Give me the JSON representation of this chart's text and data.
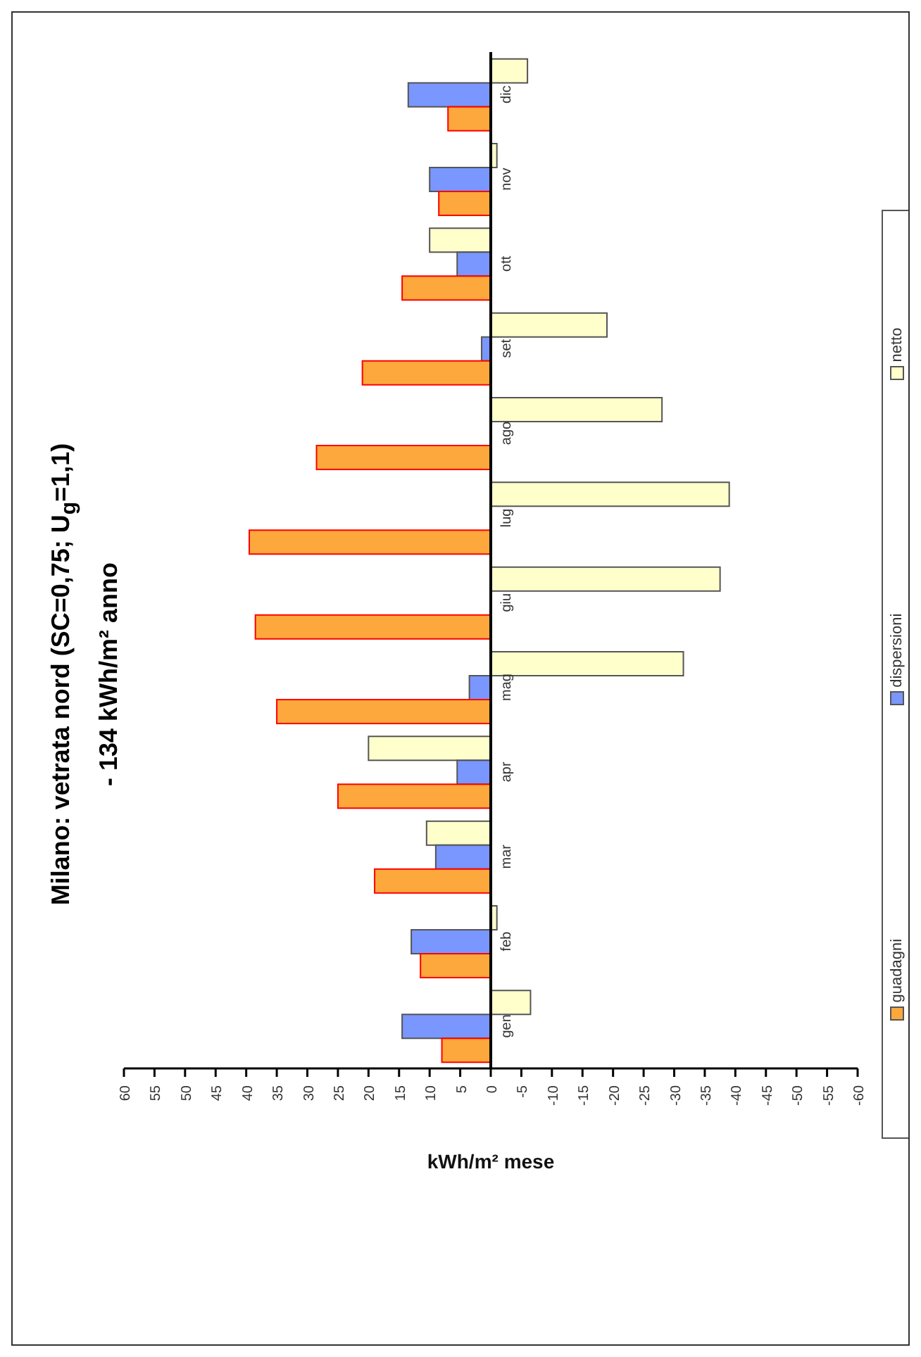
{
  "chart_data": {
    "type": "bar",
    "orientation": "horizontal",
    "title": "Milano: vetrata nord (SC=0,75; U$_{g}$=1,1)",
    "subtitle": "- 134 kWh/m² anno",
    "xlabel": "kWh/m² mese",
    "categories": [
      "dic",
      "nov",
      "ott",
      "set",
      "ago",
      "lug",
      "giu",
      "mag",
      "apr",
      "mar",
      "feb",
      "gen"
    ],
    "series": [
      {
        "name": "guadagni",
        "color": "#fca83c",
        "values": [
          7,
          8.5,
          14.5,
          21,
          28.5,
          39.5,
          38.5,
          35,
          25,
          19,
          11.5,
          8
        ]
      },
      {
        "name": "dispersioni",
        "color": "#7a96ff",
        "values": [
          13.5,
          10,
          5.5,
          1.5,
          0,
          0,
          0,
          3.5,
          5.5,
          9,
          13,
          14.5
        ]
      },
      {
        "name": "netto",
        "color": "#ffffcc",
        "values": [
          -6,
          -1,
          10,
          -19,
          -28,
          -39,
          -37.5,
          -31.5,
          20,
          10.5,
          -1,
          -6.5
        ]
      }
    ],
    "xlim": [
      60,
      -60
    ],
    "xticks": [
      60,
      55,
      50,
      45,
      40,
      35,
      30,
      25,
      20,
      15,
      10,
      5,
      0,
      -5,
      -10,
      -15,
      -20,
      -25,
      -30,
      -35,
      -40,
      -45,
      -50,
      -55,
      -60
    ],
    "legend": "right"
  }
}
